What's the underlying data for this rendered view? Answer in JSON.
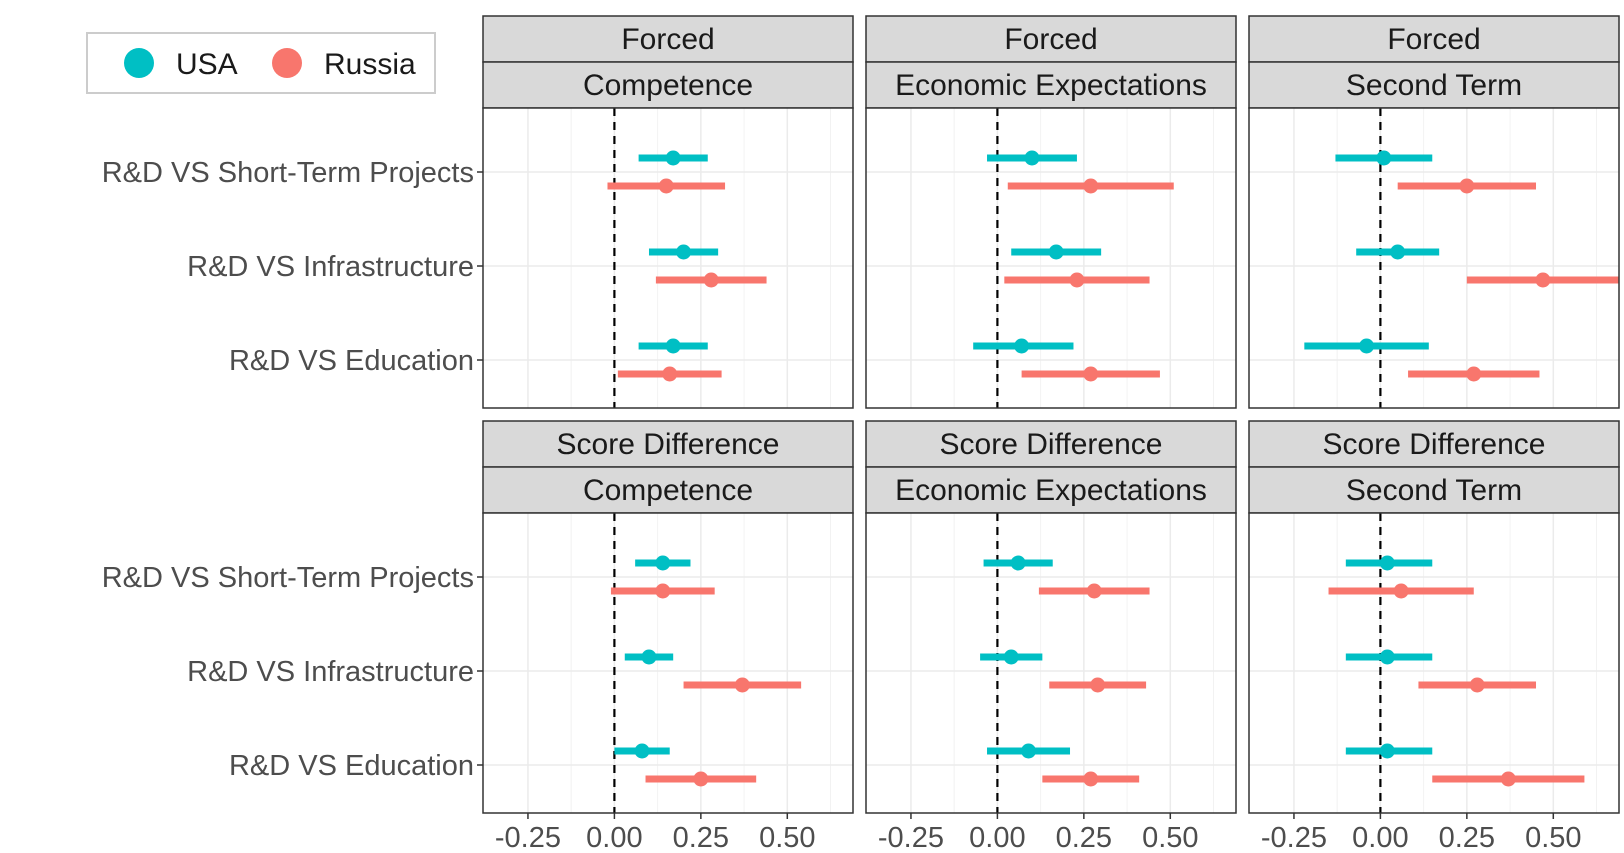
{
  "chart_data": {
    "type": "scatter",
    "subtype": "point-range (coefficient plot, faceted)",
    "legend": {
      "position": "top-left",
      "entries": [
        {
          "name": "USA",
          "color": "#00BFC4"
        },
        {
          "name": "Russia",
          "color": "#F8766D"
        }
      ]
    },
    "categories": [
      "R&D VS Short-Term Projects",
      "R&D VS Infrastructure",
      "R&D VS Education"
    ],
    "x_ticks": [
      "-0.25",
      "0.00",
      "0.25",
      "0.50"
    ],
    "x_tick_values": [
      -0.25,
      0,
      0.25,
      0.5
    ],
    "xlim": [
      -0.38,
      0.69
    ],
    "reference_line_x": 0,
    "grid": true,
    "panels": [
      {
        "row_label": "Forced",
        "col_label": "Competence",
        "series": [
          {
            "name": "USA",
            "points": [
              {
                "category": "R&D VS Short-Term Projects",
                "estimate": 0.17,
                "lower": 0.07,
                "upper": 0.27
              },
              {
                "category": "R&D VS Infrastructure",
                "estimate": 0.2,
                "lower": 0.1,
                "upper": 0.3
              },
              {
                "category": "R&D VS Education",
                "estimate": 0.17,
                "lower": 0.07,
                "upper": 0.27
              }
            ]
          },
          {
            "name": "Russia",
            "points": [
              {
                "category": "R&D VS Short-Term Projects",
                "estimate": 0.15,
                "lower": -0.02,
                "upper": 0.32
              },
              {
                "category": "R&D VS Infrastructure",
                "estimate": 0.28,
                "lower": 0.12,
                "upper": 0.44
              },
              {
                "category": "R&D VS Education",
                "estimate": 0.16,
                "lower": 0.01,
                "upper": 0.31
              }
            ]
          }
        ]
      },
      {
        "row_label": "Forced",
        "col_label": "Economic Expectations",
        "series": [
          {
            "name": "USA",
            "points": [
              {
                "category": "R&D VS Short-Term Projects",
                "estimate": 0.1,
                "lower": -0.03,
                "upper": 0.23
              },
              {
                "category": "R&D VS Infrastructure",
                "estimate": 0.17,
                "lower": 0.04,
                "upper": 0.3
              },
              {
                "category": "R&D VS Education",
                "estimate": 0.07,
                "lower": -0.07,
                "upper": 0.22
              }
            ]
          },
          {
            "name": "Russia",
            "points": [
              {
                "category": "R&D VS Short-Term Projects",
                "estimate": 0.27,
                "lower": 0.03,
                "upper": 0.51
              },
              {
                "category": "R&D VS Infrastructure",
                "estimate": 0.23,
                "lower": 0.02,
                "upper": 0.44
              },
              {
                "category": "R&D VS Education",
                "estimate": 0.27,
                "lower": 0.07,
                "upper": 0.47
              }
            ]
          }
        ]
      },
      {
        "row_label": "Forced",
        "col_label": "Second Term",
        "series": [
          {
            "name": "USA",
            "points": [
              {
                "category": "R&D VS Short-Term Projects",
                "estimate": 0.01,
                "lower": -0.13,
                "upper": 0.15
              },
              {
                "category": "R&D VS Infrastructure",
                "estimate": 0.05,
                "lower": -0.07,
                "upper": 0.17
              },
              {
                "category": "R&D VS Education",
                "estimate": -0.04,
                "lower": -0.22,
                "upper": 0.14
              }
            ]
          },
          {
            "name": "Russia",
            "points": [
              {
                "category": "R&D VS Short-Term Projects",
                "estimate": 0.25,
                "lower": 0.05,
                "upper": 0.45
              },
              {
                "category": "R&D VS Infrastructure",
                "estimate": 0.47,
                "lower": 0.25,
                "upper": 0.69
              },
              {
                "category": "R&D VS Education",
                "estimate": 0.27,
                "lower": 0.08,
                "upper": 0.46
              }
            ]
          }
        ]
      },
      {
        "row_label": "Score Difference",
        "col_label": "Competence",
        "series": [
          {
            "name": "USA",
            "points": [
              {
                "category": "R&D VS Short-Term Projects",
                "estimate": 0.14,
                "lower": 0.06,
                "upper": 0.22
              },
              {
                "category": "R&D VS Infrastructure",
                "estimate": 0.1,
                "lower": 0.03,
                "upper": 0.17
              },
              {
                "category": "R&D VS Education",
                "estimate": 0.08,
                "lower": 0,
                "upper": 0.16
              }
            ]
          },
          {
            "name": "Russia",
            "points": [
              {
                "category": "R&D VS Short-Term Projects",
                "estimate": 0.14,
                "lower": -0.01,
                "upper": 0.29
              },
              {
                "category": "R&D VS Infrastructure",
                "estimate": 0.37,
                "lower": 0.2,
                "upper": 0.54
              },
              {
                "category": "R&D VS Education",
                "estimate": 0.25,
                "lower": 0.09,
                "upper": 0.41
              }
            ]
          }
        ]
      },
      {
        "row_label": "Score Difference",
        "col_label": "Economic Expectations",
        "series": [
          {
            "name": "USA",
            "points": [
              {
                "category": "R&D VS Short-Term Projects",
                "estimate": 0.06,
                "lower": -0.04,
                "upper": 0.16
              },
              {
                "category": "R&D VS Infrastructure",
                "estimate": 0.04,
                "lower": -0.05,
                "upper": 0.13
              },
              {
                "category": "R&D VS Education",
                "estimate": 0.09,
                "lower": -0.03,
                "upper": 0.21
              }
            ]
          },
          {
            "name": "Russia",
            "points": [
              {
                "category": "R&D VS Short-Term Projects",
                "estimate": 0.28,
                "lower": 0.12,
                "upper": 0.44
              },
              {
                "category": "R&D VS Infrastructure",
                "estimate": 0.29,
                "lower": 0.15,
                "upper": 0.43
              },
              {
                "category": "R&D VS Education",
                "estimate": 0.27,
                "lower": 0.13,
                "upper": 0.41
              }
            ]
          }
        ]
      },
      {
        "row_label": "Score Difference",
        "col_label": "Second Term",
        "series": [
          {
            "name": "USA",
            "points": [
              {
                "category": "R&D VS Short-Term Projects",
                "estimate": 0.02,
                "lower": -0.1,
                "upper": 0.15
              },
              {
                "category": "R&D VS Infrastructure",
                "estimate": 0.02,
                "lower": -0.1,
                "upper": 0.15
              },
              {
                "category": "R&D VS Education",
                "estimate": 0.02,
                "lower": -0.1,
                "upper": 0.15
              }
            ]
          },
          {
            "name": "Russia",
            "points": [
              {
                "category": "R&D VS Short-Term Projects",
                "estimate": 0.06,
                "lower": -0.15,
                "upper": 0.27
              },
              {
                "category": "R&D VS Infrastructure",
                "estimate": 0.28,
                "lower": 0.11,
                "upper": 0.45
              },
              {
                "category": "R&D VS Education",
                "estimate": 0.37,
                "lower": 0.15,
                "upper": 0.59
              }
            ]
          }
        ]
      }
    ]
  }
}
